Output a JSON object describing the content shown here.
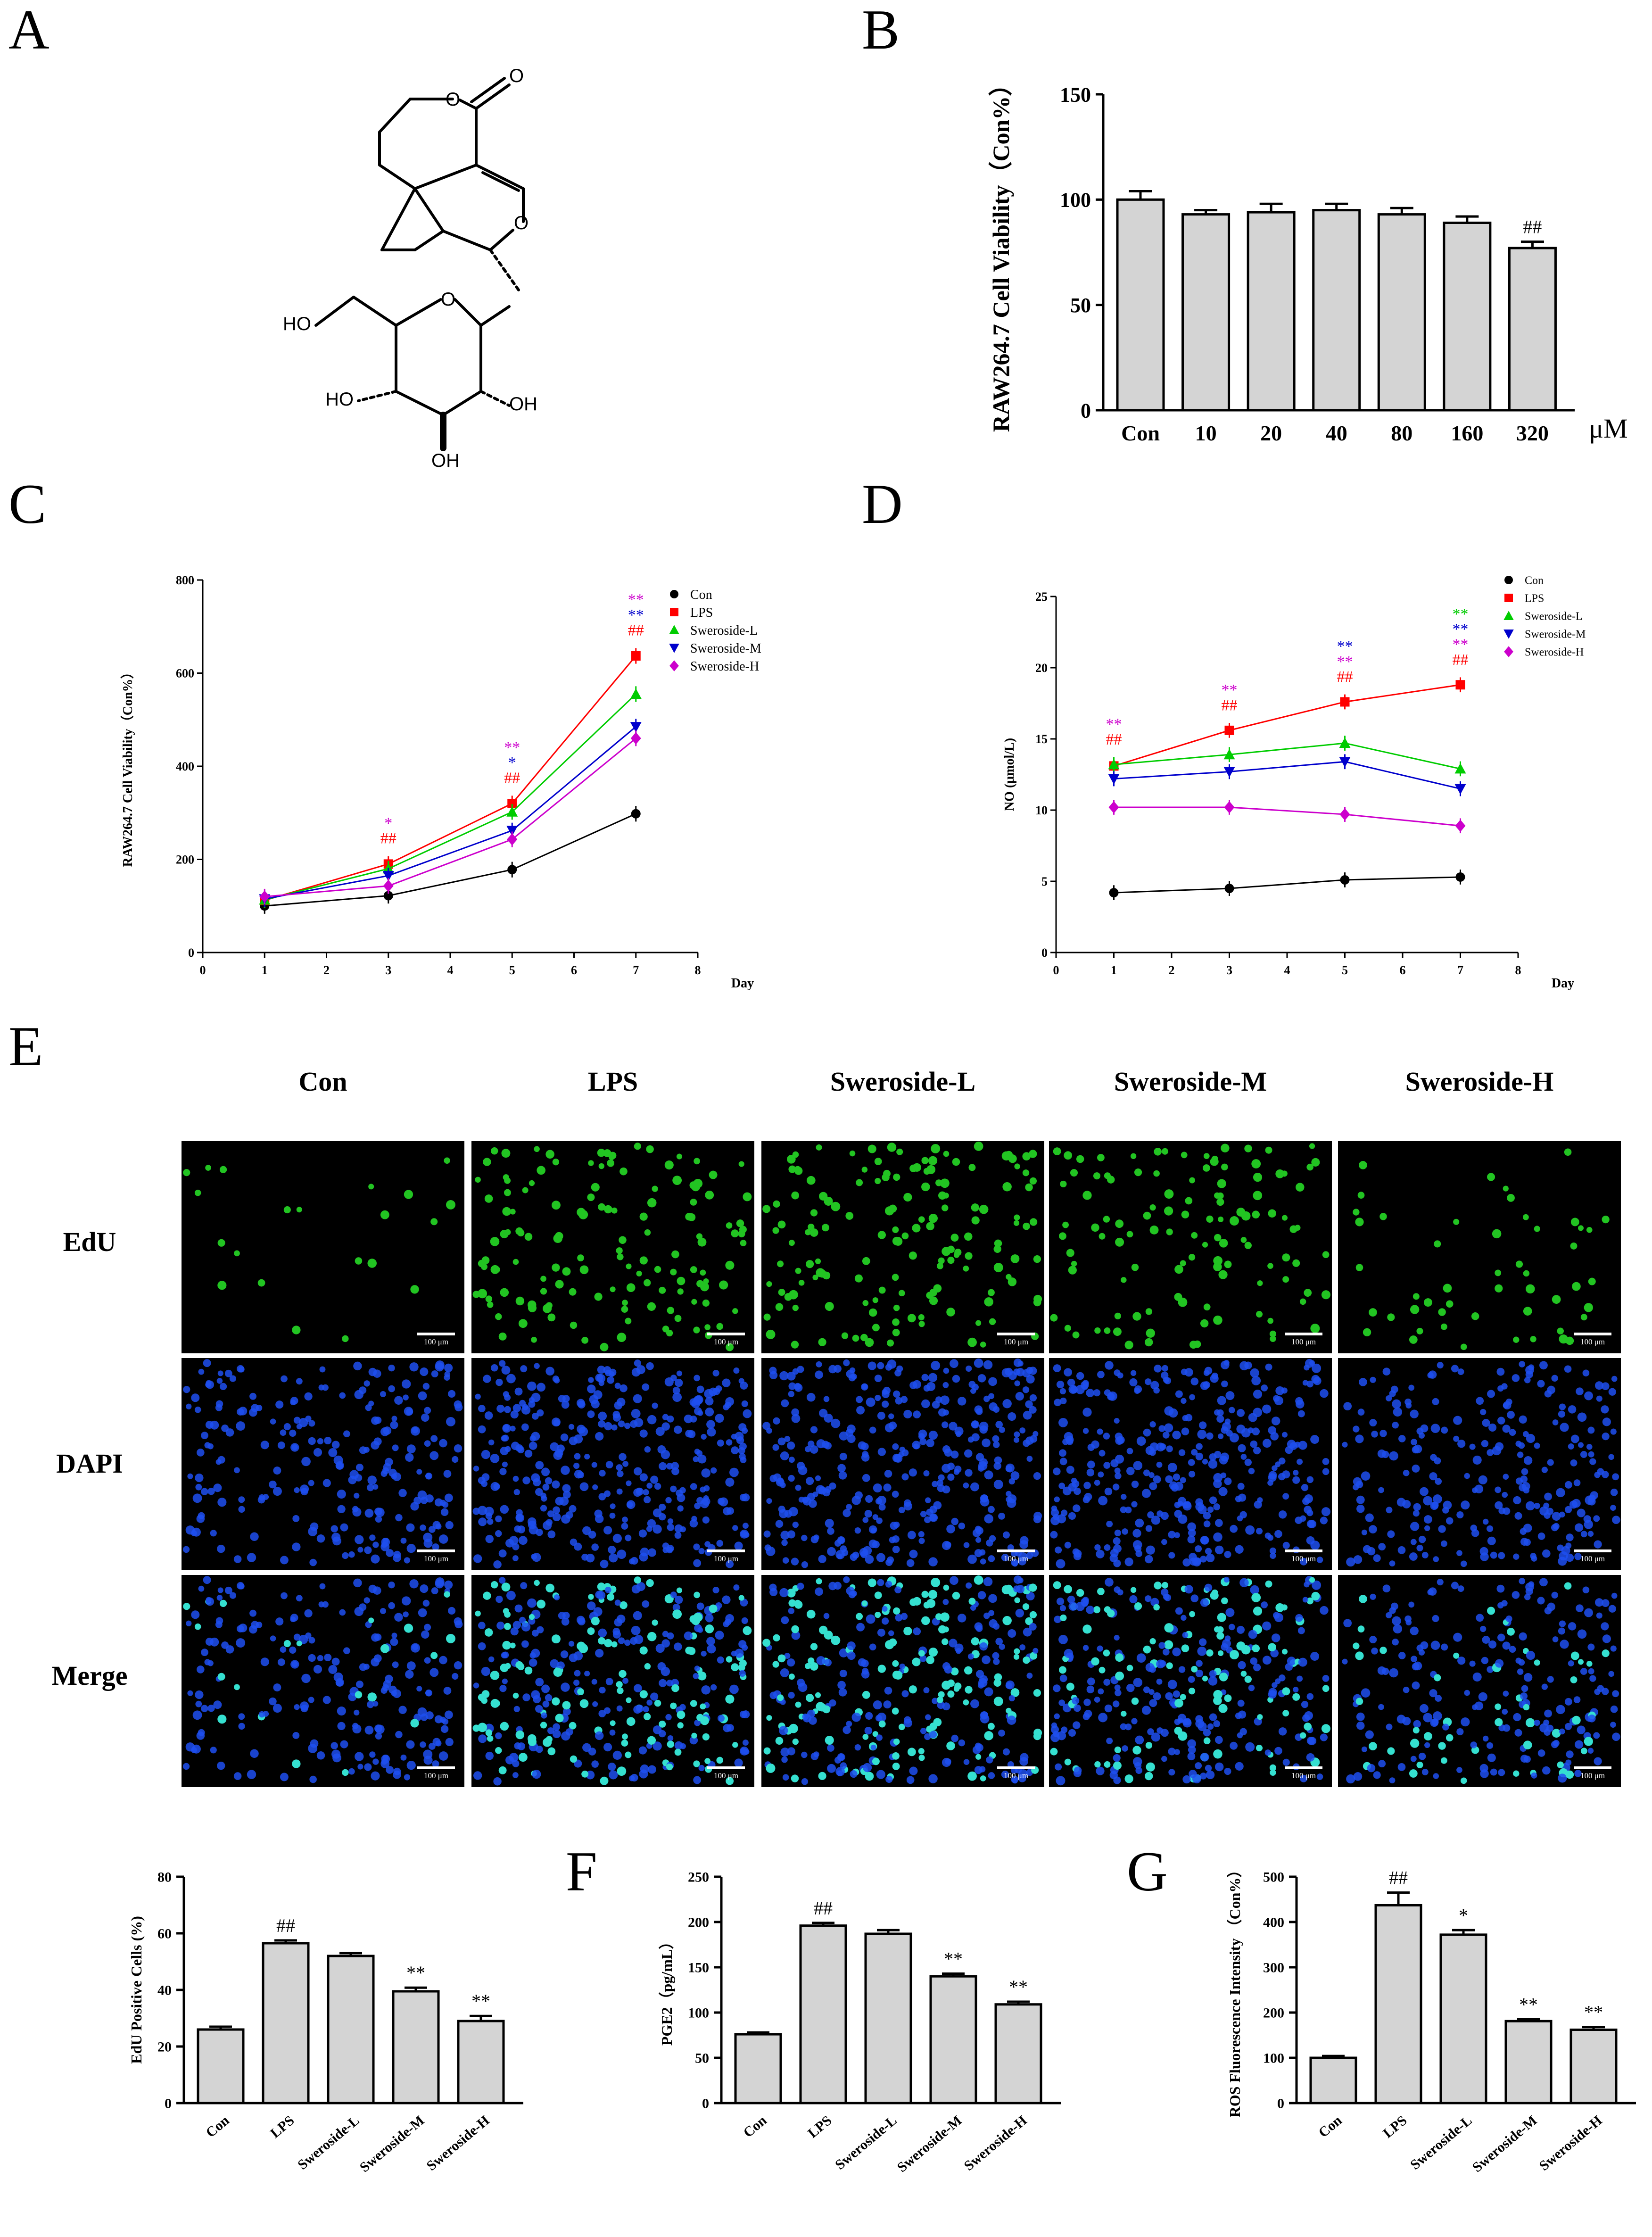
{
  "panel_letters": [
    "A",
    "B",
    "C",
    "D",
    "E",
    "F",
    "G"
  ],
  "structure": {
    "atoms": [
      "O",
      "O",
      "O",
      "O",
      "HO",
      "HO",
      "OH",
      "OH"
    ]
  },
  "micro": {
    "columns": [
      "Con",
      "LPS",
      "Sweroside-L",
      "Sweroside-M",
      "Sweroside-H"
    ],
    "rows": [
      "EdU",
      "DAPI",
      "Merge"
    ],
    "scale_label": "100 μm",
    "density_edu": [
      0.15,
      1.0,
      0.95,
      0.8,
      0.45
    ],
    "density_dapi": [
      0.55,
      1.0,
      1.0,
      0.95,
      0.6
    ],
    "colors": {
      "edu": "#22c422",
      "dapi": "#1f4ff0",
      "merge": "#35e0d0"
    }
  },
  "chart_data": [
    {
      "id": "B",
      "type": "bar",
      "categories": [
        "Con",
        "10",
        "20",
        "40",
        "80",
        "160",
        "320"
      ],
      "values": [
        100,
        93,
        94,
        95,
        93,
        89,
        77
      ],
      "errors": [
        4,
        2,
        4,
        3,
        3,
        3,
        3
      ],
      "annotations": [
        "",
        "",
        "",
        "",
        "",
        "",
        "##"
      ],
      "ylabel": "RAW264.7 Cell Viability（Con%）",
      "xunit": "μM",
      "ylim": [
        0,
        150
      ],
      "yticks": [
        0,
        50,
        100,
        150
      ]
    },
    {
      "id": "C",
      "type": "line",
      "x": [
        1,
        3,
        5,
        7
      ],
      "xlabel": "Day",
      "ylabel": "RAW264.7 Cell Viability（Con%）",
      "xlim": [
        0,
        8
      ],
      "ylim": [
        0,
        800
      ],
      "xticks": [
        0,
        1,
        2,
        3,
        4,
        5,
        6,
        7,
        8
      ],
      "yticks": [
        0,
        200,
        400,
        600,
        800
      ],
      "legend_placement": "top-right",
      "series": [
        {
          "name": "Con",
          "color": "#000000",
          "marker": "circle",
          "values": [
            100,
            122,
            178,
            298
          ]
        },
        {
          "name": "LPS",
          "color": "#ff0000",
          "marker": "square",
          "values": [
            112,
            190,
            320,
            637
          ]
        },
        {
          "name": "Sweroside-L",
          "color": "#00cc00",
          "marker": "triangle-up",
          "values": [
            113,
            180,
            302,
            555
          ]
        },
        {
          "name": "Sweroside-M",
          "color": "#0000cc",
          "marker": "triangle-down",
          "values": [
            115,
            165,
            262,
            485
          ]
        },
        {
          "name": "Sweroside-H",
          "color": "#cc00cc",
          "marker": "diamond",
          "values": [
            120,
            143,
            243,
            460
          ]
        }
      ],
      "sig": [
        {
          "x": 3,
          "lines": [
            {
              "text": "*",
              "color": "#cc00cc"
            },
            {
              "text": "##",
              "color": "#ff0000"
            }
          ]
        },
        {
          "x": 5,
          "lines": [
            {
              "text": "**",
              "color": "#cc00cc"
            },
            {
              "text": "*",
              "color": "#0000cc"
            },
            {
              "text": "##",
              "color": "#ff0000"
            }
          ]
        },
        {
          "x": 7,
          "lines": [
            {
              "text": "**",
              "color": "#cc00cc"
            },
            {
              "text": "**",
              "color": "#0000cc"
            },
            {
              "text": "##",
              "color": "#ff0000"
            }
          ]
        }
      ]
    },
    {
      "id": "D",
      "type": "line",
      "x": [
        1,
        3,
        5,
        7
      ],
      "xlabel": "Day",
      "ylabel": "NO (μmol/L)",
      "xlim": [
        0,
        8
      ],
      "ylim": [
        0,
        25
      ],
      "xticks": [
        0,
        1,
        2,
        3,
        4,
        5,
        6,
        7,
        8
      ],
      "yticks": [
        0,
        5,
        10,
        15,
        20,
        25
      ],
      "legend_placement": "top-right",
      "series": [
        {
          "name": "Con",
          "color": "#000000",
          "marker": "circle",
          "values": [
            4.2,
            4.5,
            5.1,
            5.3
          ]
        },
        {
          "name": "LPS",
          "color": "#ff0000",
          "marker": "square",
          "values": [
            13.1,
            15.6,
            17.6,
            18.8
          ]
        },
        {
          "name": "Sweroside-L",
          "color": "#00cc00",
          "marker": "triangle-up",
          "values": [
            13.2,
            13.9,
            14.7,
            12.9
          ]
        },
        {
          "name": "Sweroside-M",
          "color": "#0000cc",
          "marker": "triangle-down",
          "values": [
            12.2,
            12.7,
            13.4,
            11.5
          ]
        },
        {
          "name": "Sweroside-H",
          "color": "#cc00cc",
          "marker": "diamond",
          "values": [
            10.2,
            10.2,
            9.7,
            8.9
          ]
        }
      ],
      "sig": [
        {
          "x": 1,
          "lines": [
            {
              "text": "**",
              "color": "#cc00cc"
            },
            {
              "text": "##",
              "color": "#ff0000"
            }
          ]
        },
        {
          "x": 3,
          "lines": [
            {
              "text": "**",
              "color": "#cc00cc"
            },
            {
              "text": "##",
              "color": "#ff0000"
            }
          ]
        },
        {
          "x": 5,
          "lines": [
            {
              "text": "**",
              "color": "#0000cc"
            },
            {
              "text": "**",
              "color": "#cc00cc"
            },
            {
              "text": "##",
              "color": "#ff0000"
            }
          ]
        },
        {
          "x": 7,
          "lines": [
            {
              "text": "**",
              "color": "#00cc00"
            },
            {
              "text": "**",
              "color": "#0000cc"
            },
            {
              "text": "**",
              "color": "#cc00cc"
            },
            {
              "text": "##",
              "color": "#ff0000"
            }
          ]
        }
      ]
    },
    {
      "id": "E2",
      "type": "bar",
      "categories": [
        "Con",
        "LPS",
        "Sweroside-L",
        "Sweroside-M",
        "Sweroside-H"
      ],
      "values": [
        26,
        56.5,
        52,
        39.5,
        29
      ],
      "errors": [
        1,
        1,
        1,
        1.3,
        1.8
      ],
      "annotations": [
        "",
        "##",
        "",
        "**",
        "**"
      ],
      "ylabel": "EdU Positive Cells (%)",
      "ylim": [
        0,
        80
      ],
      "yticks": [
        0,
        20,
        40,
        60,
        80
      ]
    },
    {
      "id": "F",
      "type": "bar",
      "categories": [
        "Con",
        "LPS",
        "Sweroside-L",
        "Sweroside-M",
        "Sweroside-H"
      ],
      "values": [
        76,
        196,
        187,
        140,
        109
      ],
      "errors": [
        2,
        3,
        4,
        3,
        3
      ],
      "annotations": [
        "",
        "##",
        "",
        "**",
        "**"
      ],
      "ylabel": "PGE2（pg/mL）",
      "ylim": [
        0,
        250
      ],
      "yticks": [
        0,
        50,
        100,
        150,
        200,
        250
      ]
    },
    {
      "id": "G",
      "type": "bar",
      "categories": [
        "Con",
        "LPS",
        "Sweroside-L",
        "Sweroside-M",
        "Sweroside-H"
      ],
      "values": [
        100,
        437,
        372,
        181,
        162
      ],
      "errors": [
        4,
        28,
        10,
        4,
        6
      ],
      "annotations": [
        "",
        "##",
        "*",
        "**",
        "**"
      ],
      "ylabel": "ROS Fluorescence Intensity （Con%）",
      "ylim": [
        0,
        500
      ],
      "yticks": [
        0,
        100,
        200,
        300,
        400,
        500
      ]
    }
  ]
}
